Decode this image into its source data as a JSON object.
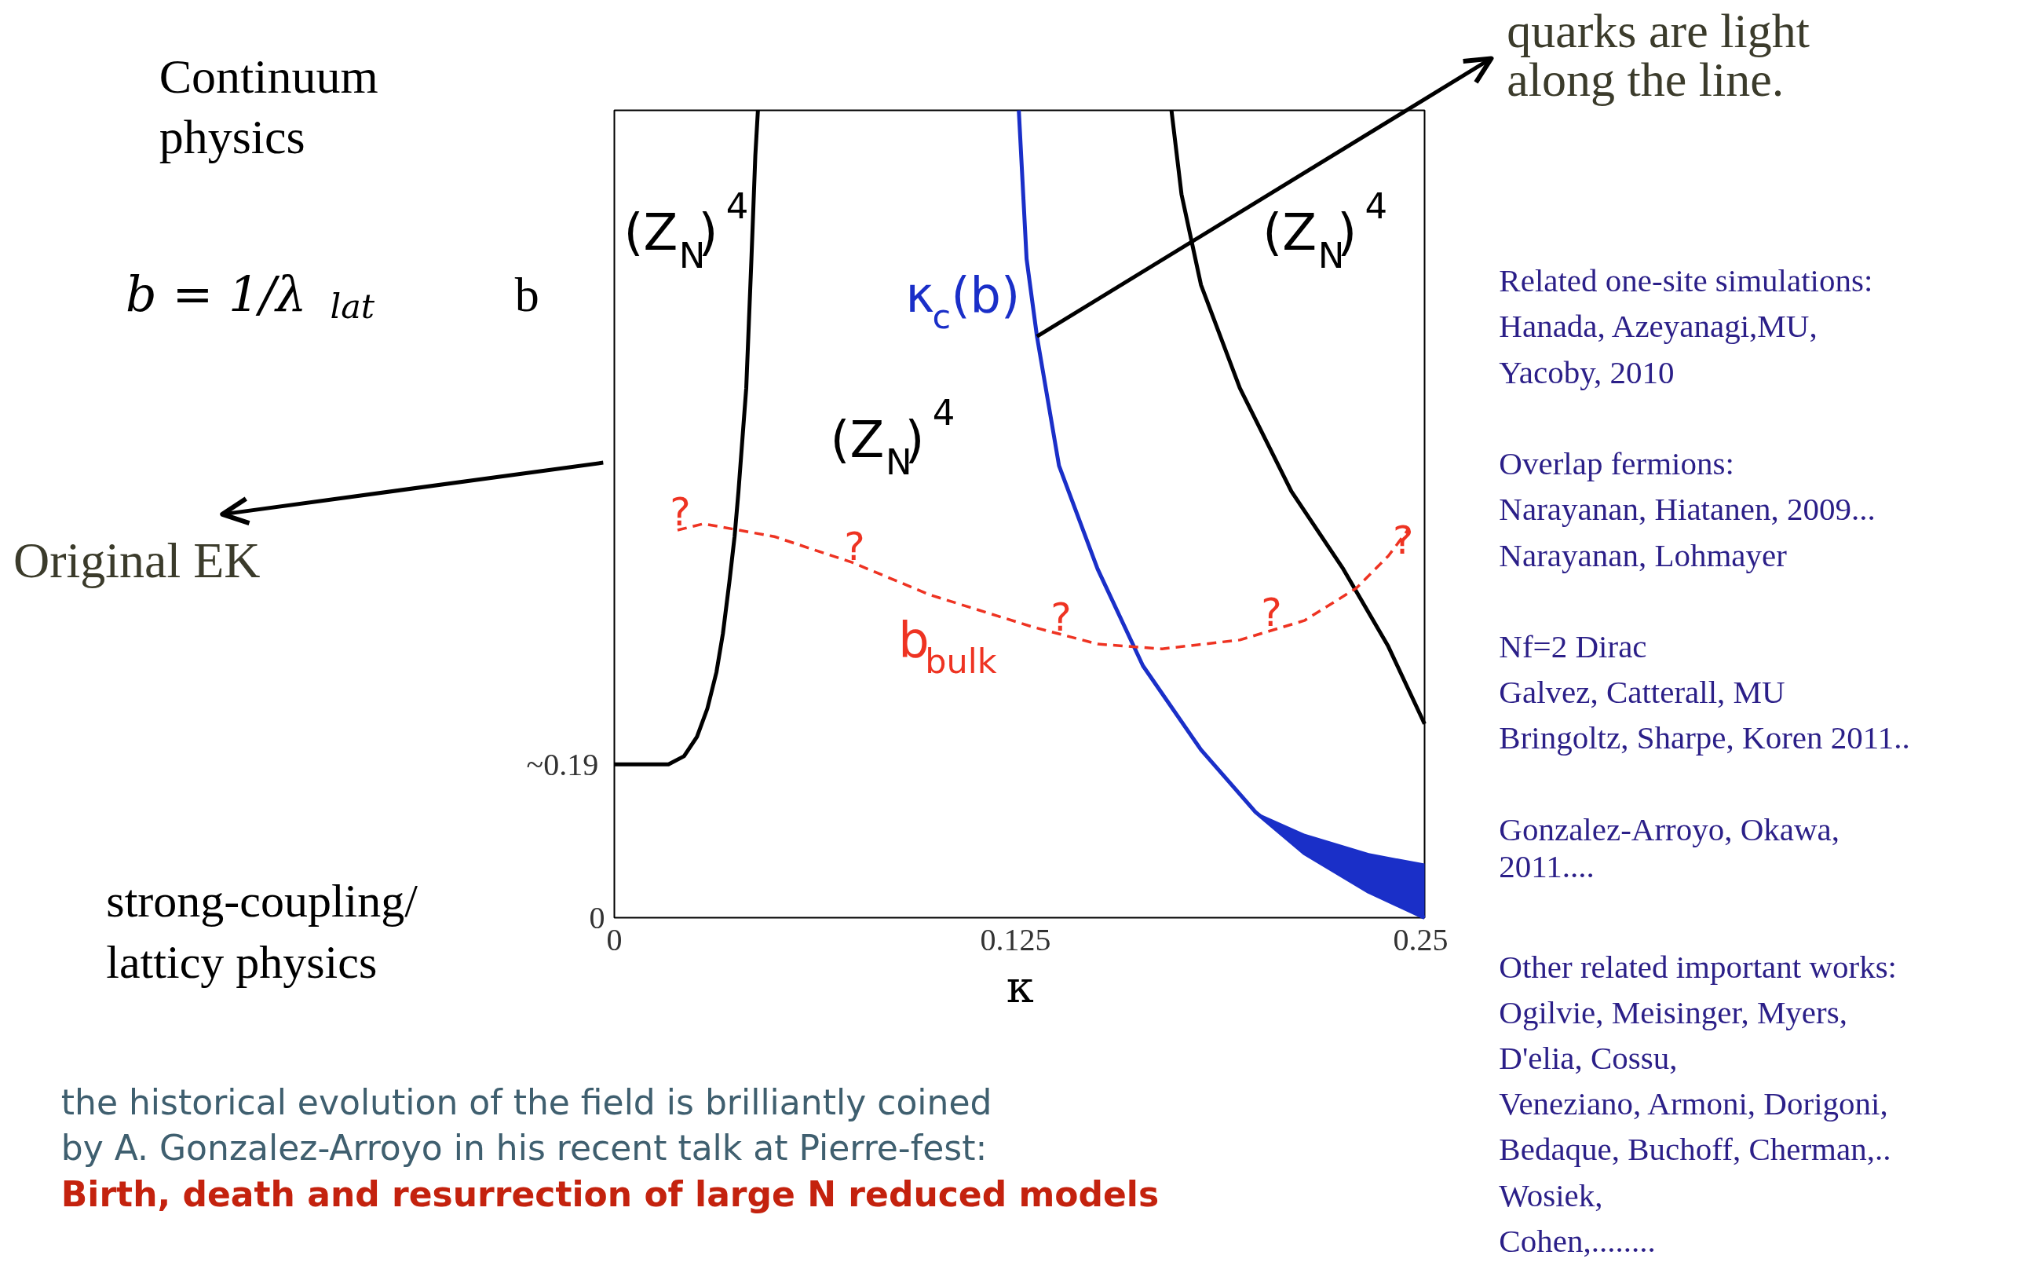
{
  "chart_data": {
    "type": "line",
    "xlabel": "κ",
    "ylabel": "b",
    "xlim": [
      0,
      0.25
    ],
    "xticks": [
      0,
      0.125,
      0.25
    ],
    "ylim": [
      0,
      1
    ],
    "yticks": [
      0,
      {
        "value": 0.19,
        "label": "~0.19"
      }
    ],
    "series": [
      {
        "color": "#000000",
        "x": [
          0,
          0.0167,
          0.0215,
          0.0255,
          0.0287,
          0.0315,
          0.0335,
          0.0355,
          0.0371,
          0.0383,
          0.0395,
          0.0407,
          0.0415,
          0.0423,
          0.0435,
          0.0443
        ],
        "values": [
          0.19,
          0.19,
          0.2,
          0.224,
          0.259,
          0.304,
          0.352,
          0.416,
          0.472,
          0.528,
          0.592,
          0.656,
          0.736,
          0.816,
          0.944,
          1.0
        ]
      },
      {
        "color": "#1a2fc8",
        "x": [
          0.1248,
          0.1272,
          0.1304,
          0.1372,
          0.1491,
          0.1631,
          0.181,
          0.1978,
          0.2129,
          0.2328,
          0.25
        ],
        "values": [
          1.0,
          0.816,
          0.72,
          0.56,
          0.432,
          0.312,
          0.208,
          0.131,
          0.08,
          0.032,
          0
        ],
        "lower": [
          null,
          null,
          null,
          null,
          null,
          null,
          null,
          0.131,
          0.08,
          0.032,
          0
        ],
        "upper": [
          null,
          null,
          null,
          null,
          null,
          null,
          null,
          0.131,
          0.104,
          0.08,
          0.067
        ]
      },
      {
        "color": "#000000",
        "x": [
          0.1719,
          0.175,
          0.181,
          0.193,
          0.2089,
          0.2249,
          0.2388,
          0.25
        ],
        "values": [
          1.0,
          0.896,
          0.784,
          0.656,
          0.528,
          0.432,
          0.336,
          0.24
        ]
      },
      {
        "color": "#ee3322",
        "line_style": "dashed",
        "x": [
          0.0195,
          0.0275,
          0.0494,
          0.0734,
          0.0973,
          0.1292,
          0.1491,
          0.169,
          0.193,
          0.2129,
          0.2289,
          0.2388,
          0.2448
        ],
        "values": [
          0.48,
          0.488,
          0.472,
          0.44,
          0.4,
          0.36,
          0.339,
          0.333,
          0.344,
          0.368,
          0.408,
          0.448,
          0.48
        ]
      }
    ],
    "annotations": [
      "Continuum\nphysics",
      "b = 1/λ$_{lat}$",
      "strong-coupling/\nlatticy physics",
      "Original EK",
      {
        "text": "quarks are light\nalong the line.",
        "x": 0.1304,
        "y": 0.72
      },
      "(Z$_{N}$)$^{4}$",
      "(Z$_{N}$)$^{4}$",
      "(Z$_{N}$)$^{4}$",
      "?",
      "?",
      "?",
      "?",
      "?",
      "κ$_{c}$(b)",
      "b$_{bulk}$",
      "Related one-site simulations:\nHanada, Azeyanagi,MU,\nYacoby, 2010\n\nOverlap fermions:\nNarayanan, Hiatanen, 2009...\nNarayanan, Lohmayer\n\nNf=2 Dirac\nGalvez, Catterall, MU\nBringoltz, Sharpe, Koren 2011..\n\nGonzalez-Arroyo, Okawa,\n2011....\n\nOther related important works:\nOgilvie, Meisinger, Myers,\nD'elia, Cossu,\nVeneziano, Armoni, Dorigoni,\nBedaque, Buchoff, Cherman,..\nWosiek,\nCohen,........",
      "the historical evolution of the field is brilliantly coined\nby A. Gonzalez-Arroyo in his recent  talk at Pierre-fest:",
      "Birth, death and resurrection of large N reduced models"
    ]
  }
}
